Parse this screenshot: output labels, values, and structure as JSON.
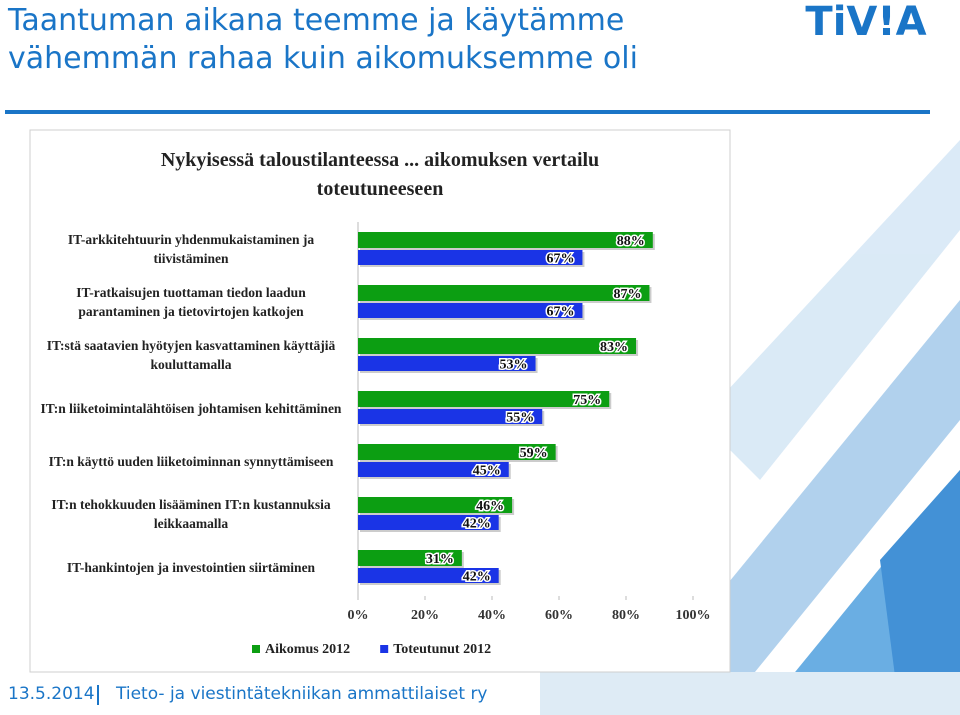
{
  "slide_title": "Taantuman aikana teemme ja käytämme vähemmän rahaa kuin aikomuksemme oli",
  "logo": "TiV!A",
  "footer": {
    "date": "13.5.2014",
    "organization": "Tieto- ja viestintätekniikan ammattilaiset ry"
  },
  "chart_data": {
    "type": "hbar",
    "title": "Nykyisessä taloustilanteessa ... aikomuksen vertailu toteutuneeseen",
    "categories": [
      "IT-arkkitehtuurin yhdenmukaistaminen ja tiivistäminen",
      "IT-ratkaisujen tuottaman tiedon laadun parantaminen ja tietovirtojen katkojen",
      "IT:stä saatavien hyötyjen kasvattaminen käyttäjiä kouluttamalla",
      "IT:n liiketoimintalähtöisen johtamisen kehittäminen",
      "IT:n käyttö uuden liiketoiminnan synnyttämiseen",
      "IT:n tehokkuuden lisääminen IT:n kustannuksia leikkaamalla",
      "IT-hankintojen ja investointien siirtäminen"
    ],
    "series": [
      {
        "name": "Aikomus 2012",
        "color": "#0c9e12",
        "values": [
          88,
          87,
          83,
          75,
          59,
          46,
          31
        ],
        "value_labels": [
          "88%",
          "87%",
          "83%",
          "75%",
          "59%",
          "46%",
          "31%"
        ]
      },
      {
        "name": "Toteutunut 2012",
        "color": "#1a34e6",
        "values": [
          67,
          67,
          53,
          55,
          45,
          42,
          42
        ],
        "value_labels": [
          "67%",
          "67%",
          "53%",
          "55%",
          "45%",
          "42%",
          "42%"
        ]
      }
    ],
    "xlim": [
      0,
      100
    ],
    "xticks": [
      {
        "value": 0,
        "label": "0%"
      },
      {
        "value": 20,
        "label": "20%"
      },
      {
        "value": 40,
        "label": "40%"
      },
      {
        "value": 60,
        "label": "60%"
      },
      {
        "value": 80,
        "label": "80%"
      },
      {
        "value": 100,
        "label": "100%"
      }
    ],
    "legend": "bottom"
  }
}
